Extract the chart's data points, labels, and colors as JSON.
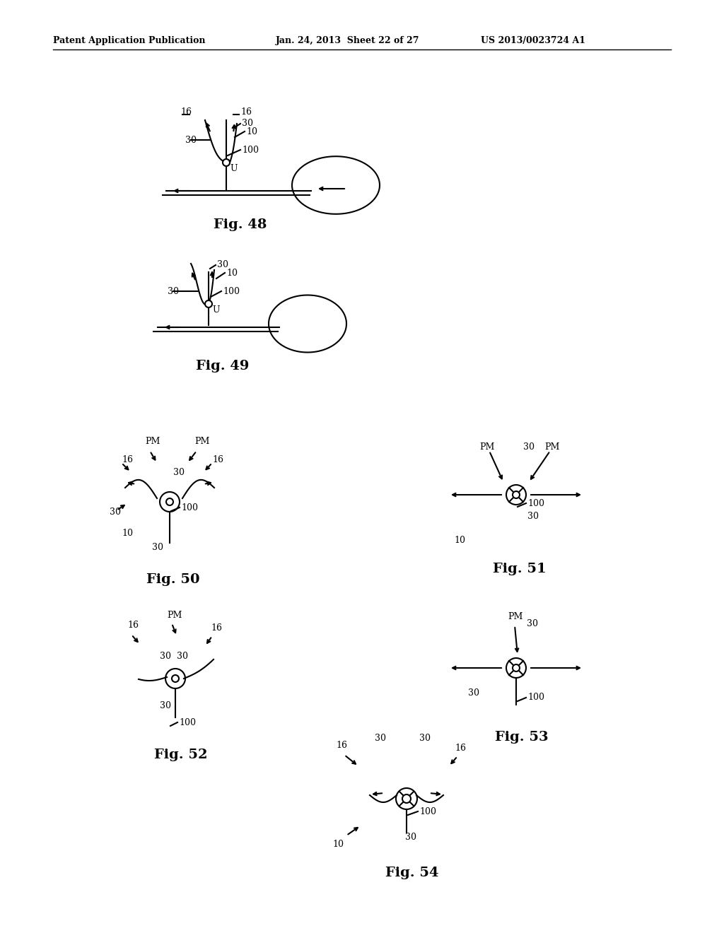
{
  "bg_color": "#ffffff",
  "header_left": "Patent Application Publication",
  "header_mid": "Jan. 24, 2013  Sheet 22 of 27",
  "header_right": "US 2013/0023724 A1"
}
